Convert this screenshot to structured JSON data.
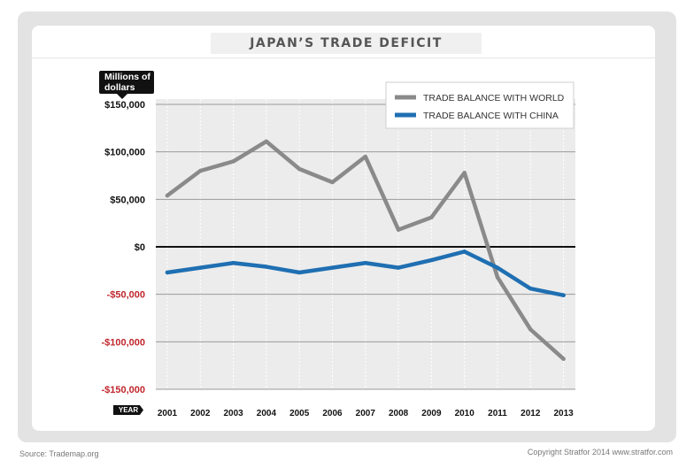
{
  "chart_data": {
    "type": "line",
    "title": "JAPAN'S TRADE DEFICIT",
    "ylabel": "Millions of dollars",
    "xlabel": "YEAR",
    "x": [
      "2001",
      "2002",
      "2003",
      "2004",
      "2005",
      "2006",
      "2007",
      "2008",
      "2009",
      "2010",
      "2011",
      "2012",
      "2013"
    ],
    "ylim": [
      -150000,
      150000
    ],
    "yticks": [
      {
        "value": 150000,
        "label": "$150,000"
      },
      {
        "value": 100000,
        "label": "$100,000"
      },
      {
        "value": 50000,
        "label": "$50,000"
      },
      {
        "value": 0,
        "label": "$0"
      },
      {
        "value": -50000,
        "label": "-$50,000"
      },
      {
        "value": -100000,
        "label": "-$100,000"
      },
      {
        "value": -150000,
        "label": "-$150,000"
      }
    ],
    "series": [
      {
        "name": "TRADE BALANCE WITH WORLD",
        "color": "#8a8a8a",
        "values": [
          54000,
          80000,
          90000,
          111000,
          82000,
          68000,
          95000,
          18000,
          31000,
          78000,
          -32000,
          -87000,
          -118000
        ]
      },
      {
        "name": "TRADE BALANCE WITH CHINA",
        "color": "#1f6fb2",
        "values": [
          -27000,
          -22000,
          -17000,
          -21000,
          -27000,
          -22000,
          -17000,
          -22000,
          -14000,
          -5000,
          -22000,
          -44000,
          -51000
        ]
      }
    ],
    "legend_position": "top-right",
    "grid": true,
    "negative_label_color": "#c1272d"
  },
  "header": {
    "title": "JAPAN’S TRADE DEFICIT",
    "unit_line1": "Millions of",
    "unit_line2": "dollars"
  },
  "axis": {
    "year_tag": "YEAR"
  },
  "footer": {
    "source": "Source: Trademap.org",
    "copyright": "Copyright Stratfor 2014 www.stratfor.com"
  }
}
